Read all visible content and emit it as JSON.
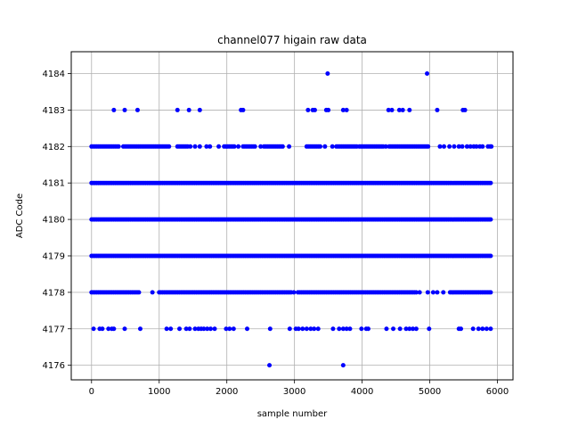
{
  "chart_data": {
    "type": "scatter",
    "title": "channel077 higain raw data",
    "xlabel": "sample number",
    "ylabel": "ADC Code",
    "xlim": [
      -300,
      6230
    ],
    "ylim": [
      4175.6,
      4184.6
    ],
    "xticks": [
      0,
      1000,
      2000,
      3000,
      4000,
      5000,
      6000
    ],
    "yticks": [
      4176,
      4177,
      4178,
      4179,
      4180,
      4181,
      4182,
      4183,
      4184
    ],
    "grid": true,
    "marker_color": "#0000ff",
    "n_samples": 5920,
    "levels": [
      {
        "y": 4176,
        "x": [
          2630,
          3720
        ]
      },
      {
        "y": 4177,
        "x": [
          30,
          120,
          160,
          250,
          300,
          330,
          490,
          720,
          1110,
          1170,
          1300,
          1400,
          1450,
          1530,
          1580,
          1620,
          1660,
          1710,
          1760,
          1820,
          1990,
          2040,
          2100,
          2300,
          2640,
          2930,
          3020,
          3060,
          3120,
          3180,
          3240,
          3290,
          3350,
          3570,
          3660,
          3720,
          3770,
          3820,
          3990,
          4060,
          4090,
          4360,
          4460,
          4560,
          4650,
          4700,
          4750,
          4800,
          4990,
          5430,
          5460,
          5640,
          5720,
          5780,
          5840,
          5900
        ]
      },
      {
        "y": 4178,
        "segments": [
          [
            0,
            700
          ],
          [
            1000,
            2950
          ],
          [
            3050,
            4800
          ],
          [
            5300,
            5920
          ]
        ],
        "x": [
          900,
          2990,
          4850,
          4970,
          5050,
          5110,
          5200
        ]
      },
      {
        "y": 4179,
        "segments": [
          [
            0,
            5920
          ]
        ]
      },
      {
        "y": 4180,
        "segments": [
          [
            0,
            5920
          ]
        ]
      },
      {
        "y": 4181,
        "segments": [
          [
            0,
            5920
          ]
        ]
      },
      {
        "y": 4182,
        "segments": [
          [
            0,
            400
          ],
          [
            470,
            1150
          ],
          [
            1270,
            1420
          ],
          [
            1960,
            2120
          ],
          [
            2240,
            2420
          ],
          [
            2550,
            2830
          ],
          [
            3180,
            3380
          ],
          [
            3620,
            3920
          ],
          [
            3960,
            4310
          ],
          [
            4400,
            4990
          ]
        ],
        "x": [
          1460,
          1530,
          1600,
          1700,
          1750,
          1880,
          2170,
          2500,
          2920,
          3450,
          3560,
          4350,
          5150,
          5210,
          5290,
          5360,
          5430,
          5480,
          5550,
          5600,
          5650,
          5690,
          5740,
          5780,
          5860,
          5890,
          5910
        ]
      },
      {
        "y": 4183,
        "x": [
          330,
          490,
          680,
          1270,
          1440,
          1600,
          2210,
          2240,
          3200,
          3270,
          3300,
          3470,
          3500,
          3720,
          3770,
          4390,
          4440,
          4550,
          4600,
          4700,
          5110,
          5490,
          5520
        ]
      },
      {
        "y": 4184,
        "x": [
          3490,
          4960
        ]
      }
    ]
  }
}
